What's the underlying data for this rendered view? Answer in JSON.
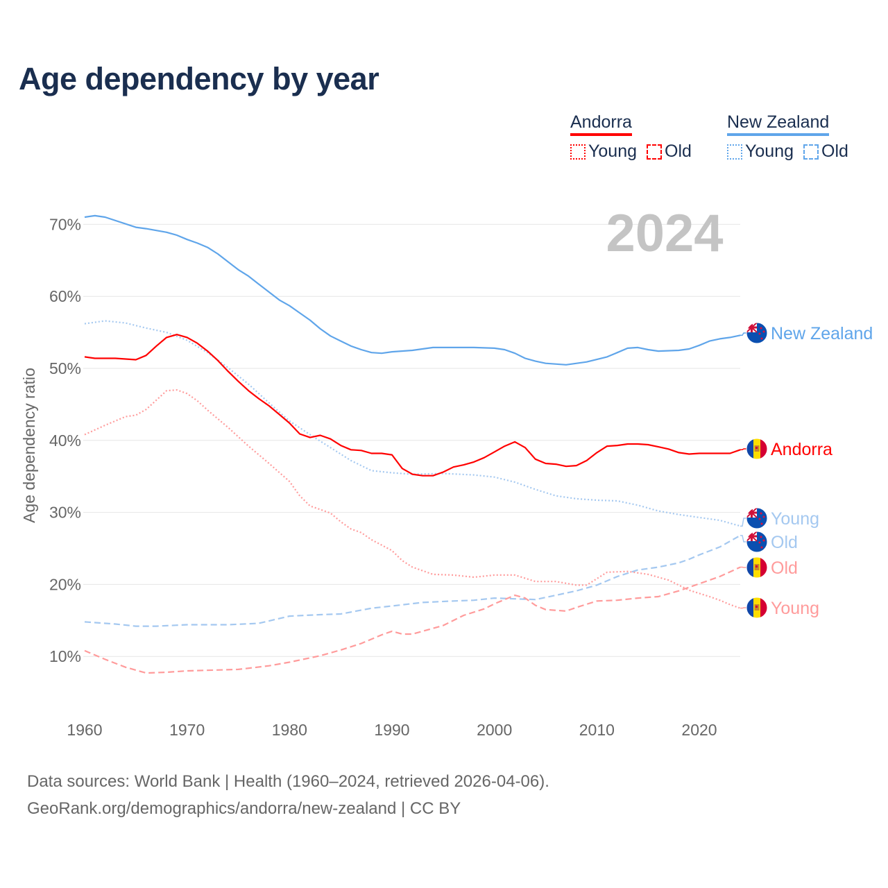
{
  "title": "Age dependency by year",
  "legend": {
    "groups": [
      {
        "country": "Andorra",
        "color": "#ff0000",
        "items": [
          {
            "label": "Young",
            "style": "dotted"
          },
          {
            "label": "Old",
            "style": "dashed"
          }
        ]
      },
      {
        "country": "New Zealand",
        "color": "#5fa5ea",
        "items": [
          {
            "label": "Young",
            "style": "dotted"
          },
          {
            "label": "Old",
            "style": "dashed"
          }
        ]
      }
    ]
  },
  "footer": {
    "line1": "Data sources: World Bank | Health (1960–2024, retrieved 2026-04-06).",
    "line2": "GeoRank.org/demographics/andorra/new-zealand | CC BY"
  },
  "chart_data": {
    "type": "line",
    "title": "Age dependency by year",
    "xlabel": "",
    "ylabel": "Age dependency ratio",
    "year_watermark": "2024",
    "xlim": [
      1960,
      2024
    ],
    "ylim": [
      0,
      72
    ],
    "x_ticks": [
      "1960",
      "1970",
      "1980",
      "1990",
      "2000",
      "2010",
      "2020"
    ],
    "y_ticks": [
      "10%",
      "20%",
      "30%",
      "40%",
      "50%",
      "60%",
      "70%"
    ],
    "grid": true,
    "series": [
      {
        "name": "New Zealand",
        "end_label": "New Zealand",
        "country": "nz",
        "style": "solid",
        "color": "#5fa5ea",
        "x": [
          1960,
          1961,
          1962,
          1965,
          1966,
          1968,
          1969,
          1970,
          1971,
          1972,
          1973,
          1974,
          1975,
          1976,
          1977,
          1978,
          1979,
          1980,
          1981,
          1982,
          1983,
          1984,
          1985,
          1986,
          1987,
          1988,
          1989,
          1990,
          1992,
          1994,
          1996,
          1998,
          2000,
          2001,
          2002,
          2003,
          2004,
          2005,
          2007,
          2009,
          2011,
          2012,
          2013,
          2014,
          2015,
          2016,
          2018,
          2019,
          2020,
          2021,
          2022,
          2023,
          2024
        ],
        "y": [
          71.0,
          71.2,
          71.0,
          69.6,
          69.4,
          68.9,
          68.5,
          67.9,
          67.4,
          66.8,
          65.9,
          64.8,
          63.7,
          62.8,
          61.7,
          60.6,
          59.5,
          58.7,
          57.7,
          56.7,
          55.5,
          54.5,
          53.8,
          53.1,
          52.6,
          52.2,
          52.1,
          52.3,
          52.5,
          52.9,
          52.9,
          52.9,
          52.8,
          52.6,
          52.1,
          51.4,
          51.0,
          50.7,
          50.5,
          50.9,
          51.6,
          52.2,
          52.8,
          52.9,
          52.6,
          52.4,
          52.5,
          52.7,
          53.2,
          53.8,
          54.1,
          54.3,
          54.6
        ]
      },
      {
        "name": "Andorra",
        "end_label": "Andorra",
        "country": "ad",
        "style": "solid",
        "color": "#ff0000",
        "x": [
          1960,
          1961,
          1963,
          1965,
          1966,
          1967,
          1968,
          1969,
          1970,
          1971,
          1972,
          1973,
          1974,
          1975,
          1976,
          1977,
          1978,
          1979,
          1980,
          1981,
          1982,
          1983,
          1984,
          1985,
          1986,
          1987,
          1988,
          1989,
          1990,
          1991,
          1992,
          1993,
          1994,
          1995,
          1996,
          1997,
          1998,
          1999,
          2000,
          2001,
          2002,
          2003,
          2004,
          2005,
          2006,
          2007,
          2008,
          2009,
          2010,
          2011,
          2012,
          2013,
          2014,
          2015,
          2016,
          2017,
          2018,
          2019,
          2020,
          2023,
          2024
        ],
        "y": [
          51.6,
          51.4,
          51.4,
          51.2,
          51.8,
          53.1,
          54.3,
          54.7,
          54.3,
          53.5,
          52.4,
          51.1,
          49.6,
          48.2,
          46.9,
          45.8,
          44.8,
          43.6,
          42.4,
          40.9,
          40.4,
          40.7,
          40.2,
          39.3,
          38.7,
          38.6,
          38.2,
          38.2,
          38.0,
          36.1,
          35.3,
          35.1,
          35.1,
          35.6,
          36.3,
          36.6,
          37.0,
          37.6,
          38.4,
          39.2,
          39.8,
          39.0,
          37.4,
          36.8,
          36.7,
          36.4,
          36.5,
          37.2,
          38.3,
          39.2,
          39.3,
          39.5,
          39.5,
          39.4,
          39.1,
          38.8,
          38.3,
          38.1,
          38.2,
          38.2,
          38.7
        ]
      },
      {
        "name": "New Zealand Young",
        "end_label": "Young",
        "country": "nz",
        "style": "dotted",
        "color": "#a4c8f0",
        "x": [
          1960,
          1962,
          1964,
          1966,
          1968,
          1970,
          1972,
          1974,
          1976,
          1978,
          1980,
          1982,
          1984,
          1986,
          1988,
          1990,
          1992,
          1995,
          1998,
          2000,
          2002,
          2004,
          2006,
          2008,
          2010,
          2012,
          2014,
          2016,
          2018,
          2020,
          2022,
          2024
        ],
        "y": [
          56.2,
          56.6,
          56.3,
          55.6,
          55.0,
          53.9,
          52.2,
          50.1,
          47.8,
          45.2,
          42.7,
          40.8,
          39.0,
          37.2,
          35.8,
          35.5,
          35.3,
          35.4,
          35.2,
          34.9,
          34.2,
          33.2,
          32.3,
          31.9,
          31.7,
          31.6,
          31.0,
          30.2,
          29.7,
          29.3,
          28.9,
          28.1
        ]
      },
      {
        "name": "New Zealand Old",
        "end_label": "Old",
        "country": "nz",
        "style": "dashed",
        "color": "#a4c8f0",
        "x": [
          1960,
          1963,
          1965,
          1967,
          1970,
          1974,
          1977,
          1980,
          1983,
          1985,
          1988,
          1990,
          1993,
          1996,
          1998,
          2000,
          2002,
          2004,
          2006,
          2008,
          2010,
          2012,
          2014,
          2016,
          2018,
          2019,
          2020,
          2022,
          2024
        ],
        "y": [
          14.8,
          14.5,
          14.2,
          14.2,
          14.4,
          14.4,
          14.6,
          15.6,
          15.8,
          15.9,
          16.7,
          17.0,
          17.5,
          17.7,
          17.8,
          18.1,
          18.0,
          17.9,
          18.5,
          19.1,
          19.9,
          21.1,
          22.0,
          22.4,
          23.0,
          23.5,
          24.1,
          25.2,
          26.8
        ]
      },
      {
        "name": "Andorra Old",
        "end_label": "Old",
        "country": "ad",
        "style": "dashed",
        "color": "#ff9b9b",
        "x": [
          1960,
          1962,
          1964,
          1966,
          1968,
          1970,
          1975,
          1978,
          1980,
          1983,
          1985,
          1987,
          1989,
          1990,
          1991,
          1992,
          1995,
          1997,
          1999,
          2000,
          2002,
          2003,
          2004,
          2005,
          2007,
          2008,
          2010,
          2012,
          2014,
          2016,
          2018,
          2020,
          2022,
          2024
        ],
        "y": [
          10.8,
          9.6,
          8.5,
          7.7,
          7.8,
          8.0,
          8.2,
          8.7,
          9.2,
          10.1,
          10.9,
          11.8,
          13.0,
          13.5,
          13.1,
          13.1,
          14.3,
          15.7,
          16.6,
          17.3,
          18.5,
          18.1,
          17.1,
          16.5,
          16.3,
          16.8,
          17.7,
          17.8,
          18.1,
          18.3,
          19.1,
          20.1,
          21.1,
          22.4
        ]
      },
      {
        "name": "Andorra Young",
        "end_label": "Young",
        "country": "ad",
        "style": "dotted",
        "color": "#ff9b9b",
        "x": [
          1960,
          1962,
          1964,
          1965,
          1966,
          1967,
          1968,
          1969,
          1970,
          1971,
          1972,
          1974,
          1976,
          1978,
          1980,
          1981,
          1982,
          1983,
          1984,
          1985,
          1986,
          1987,
          1988,
          1990,
          1991,
          1992,
          1994,
          1996,
          1998,
          2000,
          2002,
          2004,
          2006,
          2008,
          2009,
          2010,
          2011,
          2013,
          2015,
          2017,
          2019,
          2021,
          2022,
          2023,
          2024
        ],
        "y": [
          40.8,
          42.1,
          43.3,
          43.5,
          44.3,
          45.6,
          46.9,
          47.0,
          46.5,
          45.5,
          44.2,
          41.8,
          39.2,
          36.8,
          34.3,
          32.3,
          30.9,
          30.4,
          29.9,
          28.7,
          27.7,
          27.2,
          26.2,
          24.7,
          23.3,
          22.4,
          21.4,
          21.3,
          21.0,
          21.3,
          21.3,
          20.4,
          20.4,
          19.9,
          19.9,
          20.8,
          21.7,
          21.8,
          21.4,
          20.6,
          19.2,
          18.3,
          17.8,
          17.2,
          16.7
        ]
      }
    ]
  }
}
